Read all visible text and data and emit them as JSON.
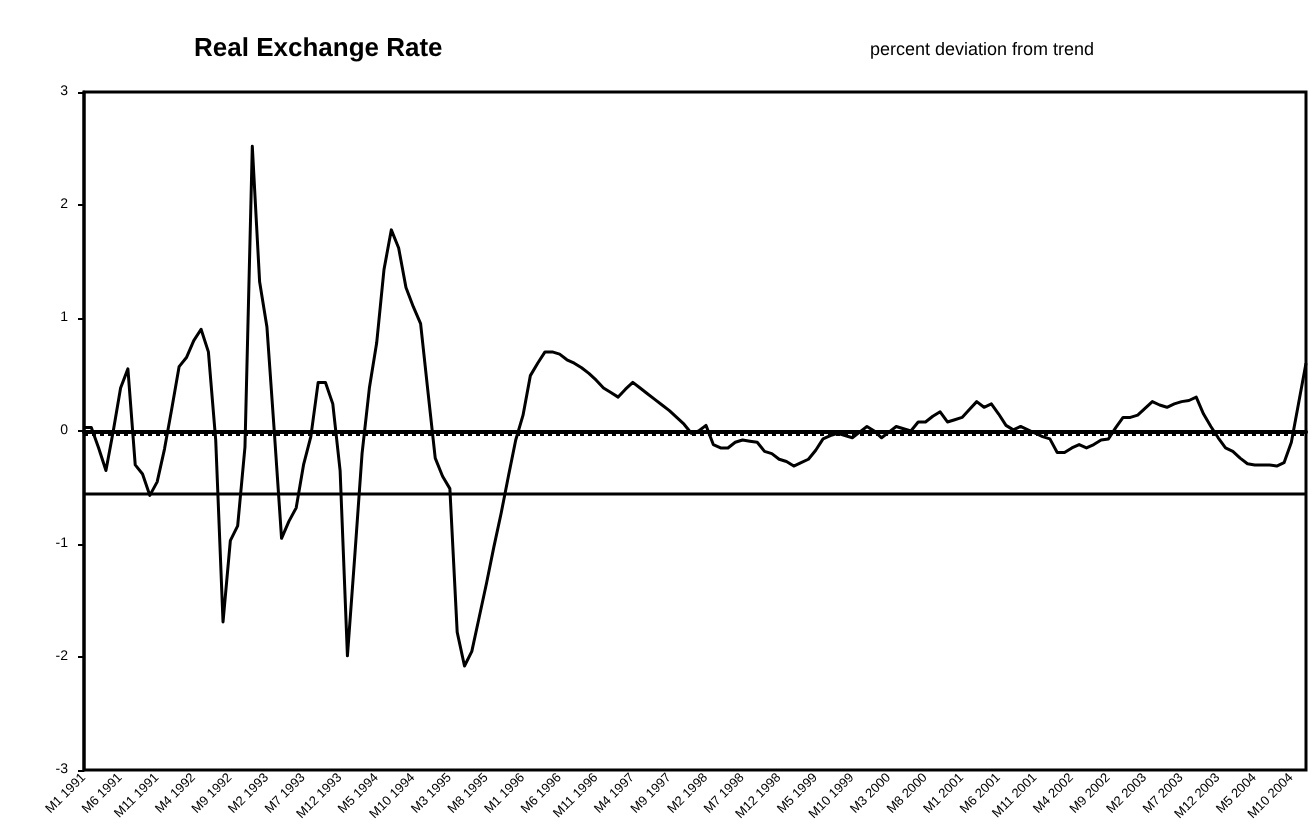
{
  "chart_data": {
    "type": "line",
    "title": "Real Exchange Rate",
    "subtitle": "percent deviation from trend",
    "categories": [
      "M1 1991",
      null,
      null,
      null,
      null,
      "M6 1991",
      null,
      null,
      null,
      null,
      "M11 1991",
      null,
      null,
      null,
      null,
      "M4 1992",
      null,
      null,
      null,
      null,
      "M9 1992",
      null,
      null,
      null,
      null,
      "M2 1993",
      null,
      null,
      null,
      null,
      "M7 1993",
      null,
      null,
      null,
      null,
      "M12 1993",
      null,
      null,
      null,
      null,
      "M5 1994",
      null,
      null,
      null,
      null,
      "M10 1994",
      null,
      null,
      null,
      null,
      "M3 1995",
      null,
      null,
      null,
      null,
      "M8 1995",
      null,
      null,
      null,
      null,
      "M1 1996",
      null,
      null,
      null,
      null,
      "M6 1996",
      null,
      null,
      null,
      null,
      "M11 1996",
      null,
      null,
      null,
      null,
      "M4 1997",
      null,
      null,
      null,
      null,
      "M9 1997",
      null,
      null,
      null,
      null,
      "M2 1998",
      null,
      null,
      null,
      null,
      "M7 1998",
      null,
      null,
      null,
      null,
      "M12 1998",
      null,
      null,
      null,
      null,
      "M5 1999",
      null,
      null,
      null,
      null,
      "M10 1999",
      null,
      null,
      null,
      null,
      "M3 2000",
      null,
      null,
      null,
      null,
      "M8 2000",
      null,
      null,
      null,
      null,
      "M1 2001",
      null,
      null,
      null,
      null,
      "M6 2001",
      null,
      null,
      null,
      null,
      "M11 2001",
      null,
      null,
      null,
      null,
      "M4 2002",
      null,
      null,
      null,
      null,
      "M9 2002",
      null,
      null,
      null,
      null,
      "M2 2003",
      null,
      null,
      null,
      null,
      "M7 2003",
      null,
      null,
      null,
      null,
      "M12 2003",
      null,
      null,
      null,
      null,
      "M5 2004",
      null,
      null,
      null,
      null,
      "M10 2004",
      null,
      null
    ],
    "series": [
      {
        "color": "#000000",
        "values": [
          0.03,
          0.03,
          -0.15,
          -0.35,
          0.0,
          0.38,
          0.55,
          -0.3,
          -0.38,
          -0.57,
          -0.45,
          -0.16,
          0.2,
          0.57,
          0.65,
          0.8,
          0.9,
          0.7,
          -0.08,
          -1.69,
          -0.97,
          -0.84,
          -0.14,
          2.52,
          1.32,
          0.92,
          0.0,
          -0.95,
          -0.8,
          -0.68,
          -0.3,
          -0.05,
          0.43,
          0.43,
          0.24,
          -0.35,
          -1.99,
          -1.11,
          -0.2,
          0.38,
          0.78,
          1.43,
          1.78,
          1.62,
          1.27,
          1.1,
          0.95,
          0.35,
          -0.24,
          -0.4,
          -0.51,
          -1.78,
          -2.08,
          -1.95,
          -1.65,
          -1.35,
          -1.03,
          -0.73,
          -0.4,
          -0.08,
          0.14,
          0.49,
          0.6,
          0.7,
          0.7,
          0.68,
          0.63,
          0.6,
          0.56,
          0.51,
          0.45,
          0.38,
          0.34,
          0.3,
          0.37,
          0.43,
          0.38,
          0.33,
          0.28,
          0.23,
          0.18,
          0.12,
          0.06,
          -0.02,
          0.0,
          0.05,
          -0.12,
          -0.15,
          -0.15,
          -0.1,
          -0.08,
          -0.09,
          -0.1,
          -0.18,
          -0.2,
          -0.25,
          -0.27,
          -0.31,
          -0.28,
          -0.25,
          -0.17,
          -0.07,
          -0.04,
          -0.02,
          -0.04,
          -0.06,
          -0.01,
          0.04,
          0.0,
          -0.06,
          -0.01,
          0.04,
          0.02,
          0.0,
          0.08,
          0.08,
          0.13,
          0.17,
          0.08,
          0.1,
          0.12,
          0.19,
          0.26,
          0.21,
          0.24,
          0.15,
          0.05,
          0.01,
          0.04,
          0.01,
          -0.02,
          -0.05,
          -0.07,
          -0.19,
          -0.19,
          -0.15,
          -0.12,
          -0.15,
          -0.12,
          -0.08,
          -0.07,
          0.03,
          0.12,
          0.12,
          0.14,
          0.2,
          0.26,
          0.23,
          0.21,
          0.24,
          0.26,
          0.27,
          0.3,
          0.15,
          0.04,
          -0.06,
          -0.15,
          -0.18,
          -0.24,
          -0.29,
          -0.3,
          -0.3,
          -0.3,
          -0.31,
          -0.28,
          -0.1,
          0.25,
          0.6
        ]
      }
    ],
    "ylim": [
      -3,
      3
    ],
    "yticks": [
      -3,
      -2,
      -1,
      0,
      1,
      2,
      3
    ],
    "grid": false,
    "marker": "none",
    "line_style": "solid",
    "ref_lines": [
      {
        "axis": "y",
        "value": -0.03,
        "color": "#000000",
        "line_style": "dotted"
      },
      {
        "axis": "y",
        "value": -0.55,
        "color": "#000000",
        "line_style": "solid"
      }
    ]
  }
}
